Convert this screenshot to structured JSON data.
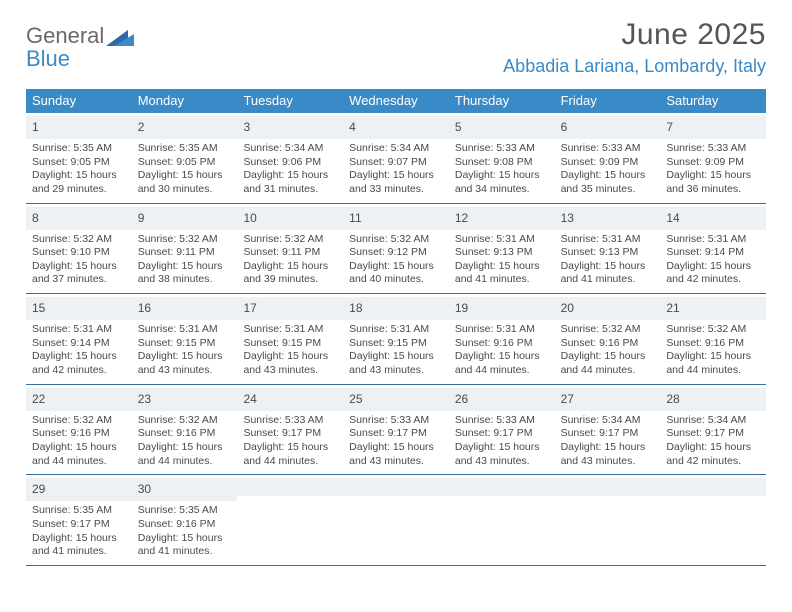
{
  "logo": {
    "line1": "General",
    "line2": "Blue"
  },
  "title": "June 2025",
  "location": "Abbadia Lariana, Lombardy, Italy",
  "colors": {
    "header_bg": "#3a8ac8",
    "header_text": "#ffffff",
    "daynum_bg": "#eef1f3",
    "border": "#3a6e9c",
    "text": "#4a4a4a",
    "accent": "#3a8ac8"
  },
  "weekdays": [
    "Sunday",
    "Monday",
    "Tuesday",
    "Wednesday",
    "Thursday",
    "Friday",
    "Saturday"
  ],
  "weeks": [
    [
      {
        "n": "1",
        "sr": "5:35 AM",
        "ss": "9:05 PM",
        "dl": "15 hours and 29 minutes."
      },
      {
        "n": "2",
        "sr": "5:35 AM",
        "ss": "9:05 PM",
        "dl": "15 hours and 30 minutes."
      },
      {
        "n": "3",
        "sr": "5:34 AM",
        "ss": "9:06 PM",
        "dl": "15 hours and 31 minutes."
      },
      {
        "n": "4",
        "sr": "5:34 AM",
        "ss": "9:07 PM",
        "dl": "15 hours and 33 minutes."
      },
      {
        "n": "5",
        "sr": "5:33 AM",
        "ss": "9:08 PM",
        "dl": "15 hours and 34 minutes."
      },
      {
        "n": "6",
        "sr": "5:33 AM",
        "ss": "9:09 PM",
        "dl": "15 hours and 35 minutes."
      },
      {
        "n": "7",
        "sr": "5:33 AM",
        "ss": "9:09 PM",
        "dl": "15 hours and 36 minutes."
      }
    ],
    [
      {
        "n": "8",
        "sr": "5:32 AM",
        "ss": "9:10 PM",
        "dl": "15 hours and 37 minutes."
      },
      {
        "n": "9",
        "sr": "5:32 AM",
        "ss": "9:11 PM",
        "dl": "15 hours and 38 minutes."
      },
      {
        "n": "10",
        "sr": "5:32 AM",
        "ss": "9:11 PM",
        "dl": "15 hours and 39 minutes."
      },
      {
        "n": "11",
        "sr": "5:32 AM",
        "ss": "9:12 PM",
        "dl": "15 hours and 40 minutes."
      },
      {
        "n": "12",
        "sr": "5:31 AM",
        "ss": "9:13 PM",
        "dl": "15 hours and 41 minutes."
      },
      {
        "n": "13",
        "sr": "5:31 AM",
        "ss": "9:13 PM",
        "dl": "15 hours and 41 minutes."
      },
      {
        "n": "14",
        "sr": "5:31 AM",
        "ss": "9:14 PM",
        "dl": "15 hours and 42 minutes."
      }
    ],
    [
      {
        "n": "15",
        "sr": "5:31 AM",
        "ss": "9:14 PM",
        "dl": "15 hours and 42 minutes."
      },
      {
        "n": "16",
        "sr": "5:31 AM",
        "ss": "9:15 PM",
        "dl": "15 hours and 43 minutes."
      },
      {
        "n": "17",
        "sr": "5:31 AM",
        "ss": "9:15 PM",
        "dl": "15 hours and 43 minutes."
      },
      {
        "n": "18",
        "sr": "5:31 AM",
        "ss": "9:15 PM",
        "dl": "15 hours and 43 minutes."
      },
      {
        "n": "19",
        "sr": "5:31 AM",
        "ss": "9:16 PM",
        "dl": "15 hours and 44 minutes."
      },
      {
        "n": "20",
        "sr": "5:32 AM",
        "ss": "9:16 PM",
        "dl": "15 hours and 44 minutes."
      },
      {
        "n": "21",
        "sr": "5:32 AM",
        "ss": "9:16 PM",
        "dl": "15 hours and 44 minutes."
      }
    ],
    [
      {
        "n": "22",
        "sr": "5:32 AM",
        "ss": "9:16 PM",
        "dl": "15 hours and 44 minutes."
      },
      {
        "n": "23",
        "sr": "5:32 AM",
        "ss": "9:16 PM",
        "dl": "15 hours and 44 minutes."
      },
      {
        "n": "24",
        "sr": "5:33 AM",
        "ss": "9:17 PM",
        "dl": "15 hours and 44 minutes."
      },
      {
        "n": "25",
        "sr": "5:33 AM",
        "ss": "9:17 PM",
        "dl": "15 hours and 43 minutes."
      },
      {
        "n": "26",
        "sr": "5:33 AM",
        "ss": "9:17 PM",
        "dl": "15 hours and 43 minutes."
      },
      {
        "n": "27",
        "sr": "5:34 AM",
        "ss": "9:17 PM",
        "dl": "15 hours and 43 minutes."
      },
      {
        "n": "28",
        "sr": "5:34 AM",
        "ss": "9:17 PM",
        "dl": "15 hours and 42 minutes."
      }
    ],
    [
      {
        "n": "29",
        "sr": "5:35 AM",
        "ss": "9:17 PM",
        "dl": "15 hours and 41 minutes."
      },
      {
        "n": "30",
        "sr": "5:35 AM",
        "ss": "9:16 PM",
        "dl": "15 hours and 41 minutes."
      },
      null,
      null,
      null,
      null,
      null
    ]
  ],
  "labels": {
    "sunrise": "Sunrise:",
    "sunset": "Sunset:",
    "daylight": "Daylight:"
  }
}
